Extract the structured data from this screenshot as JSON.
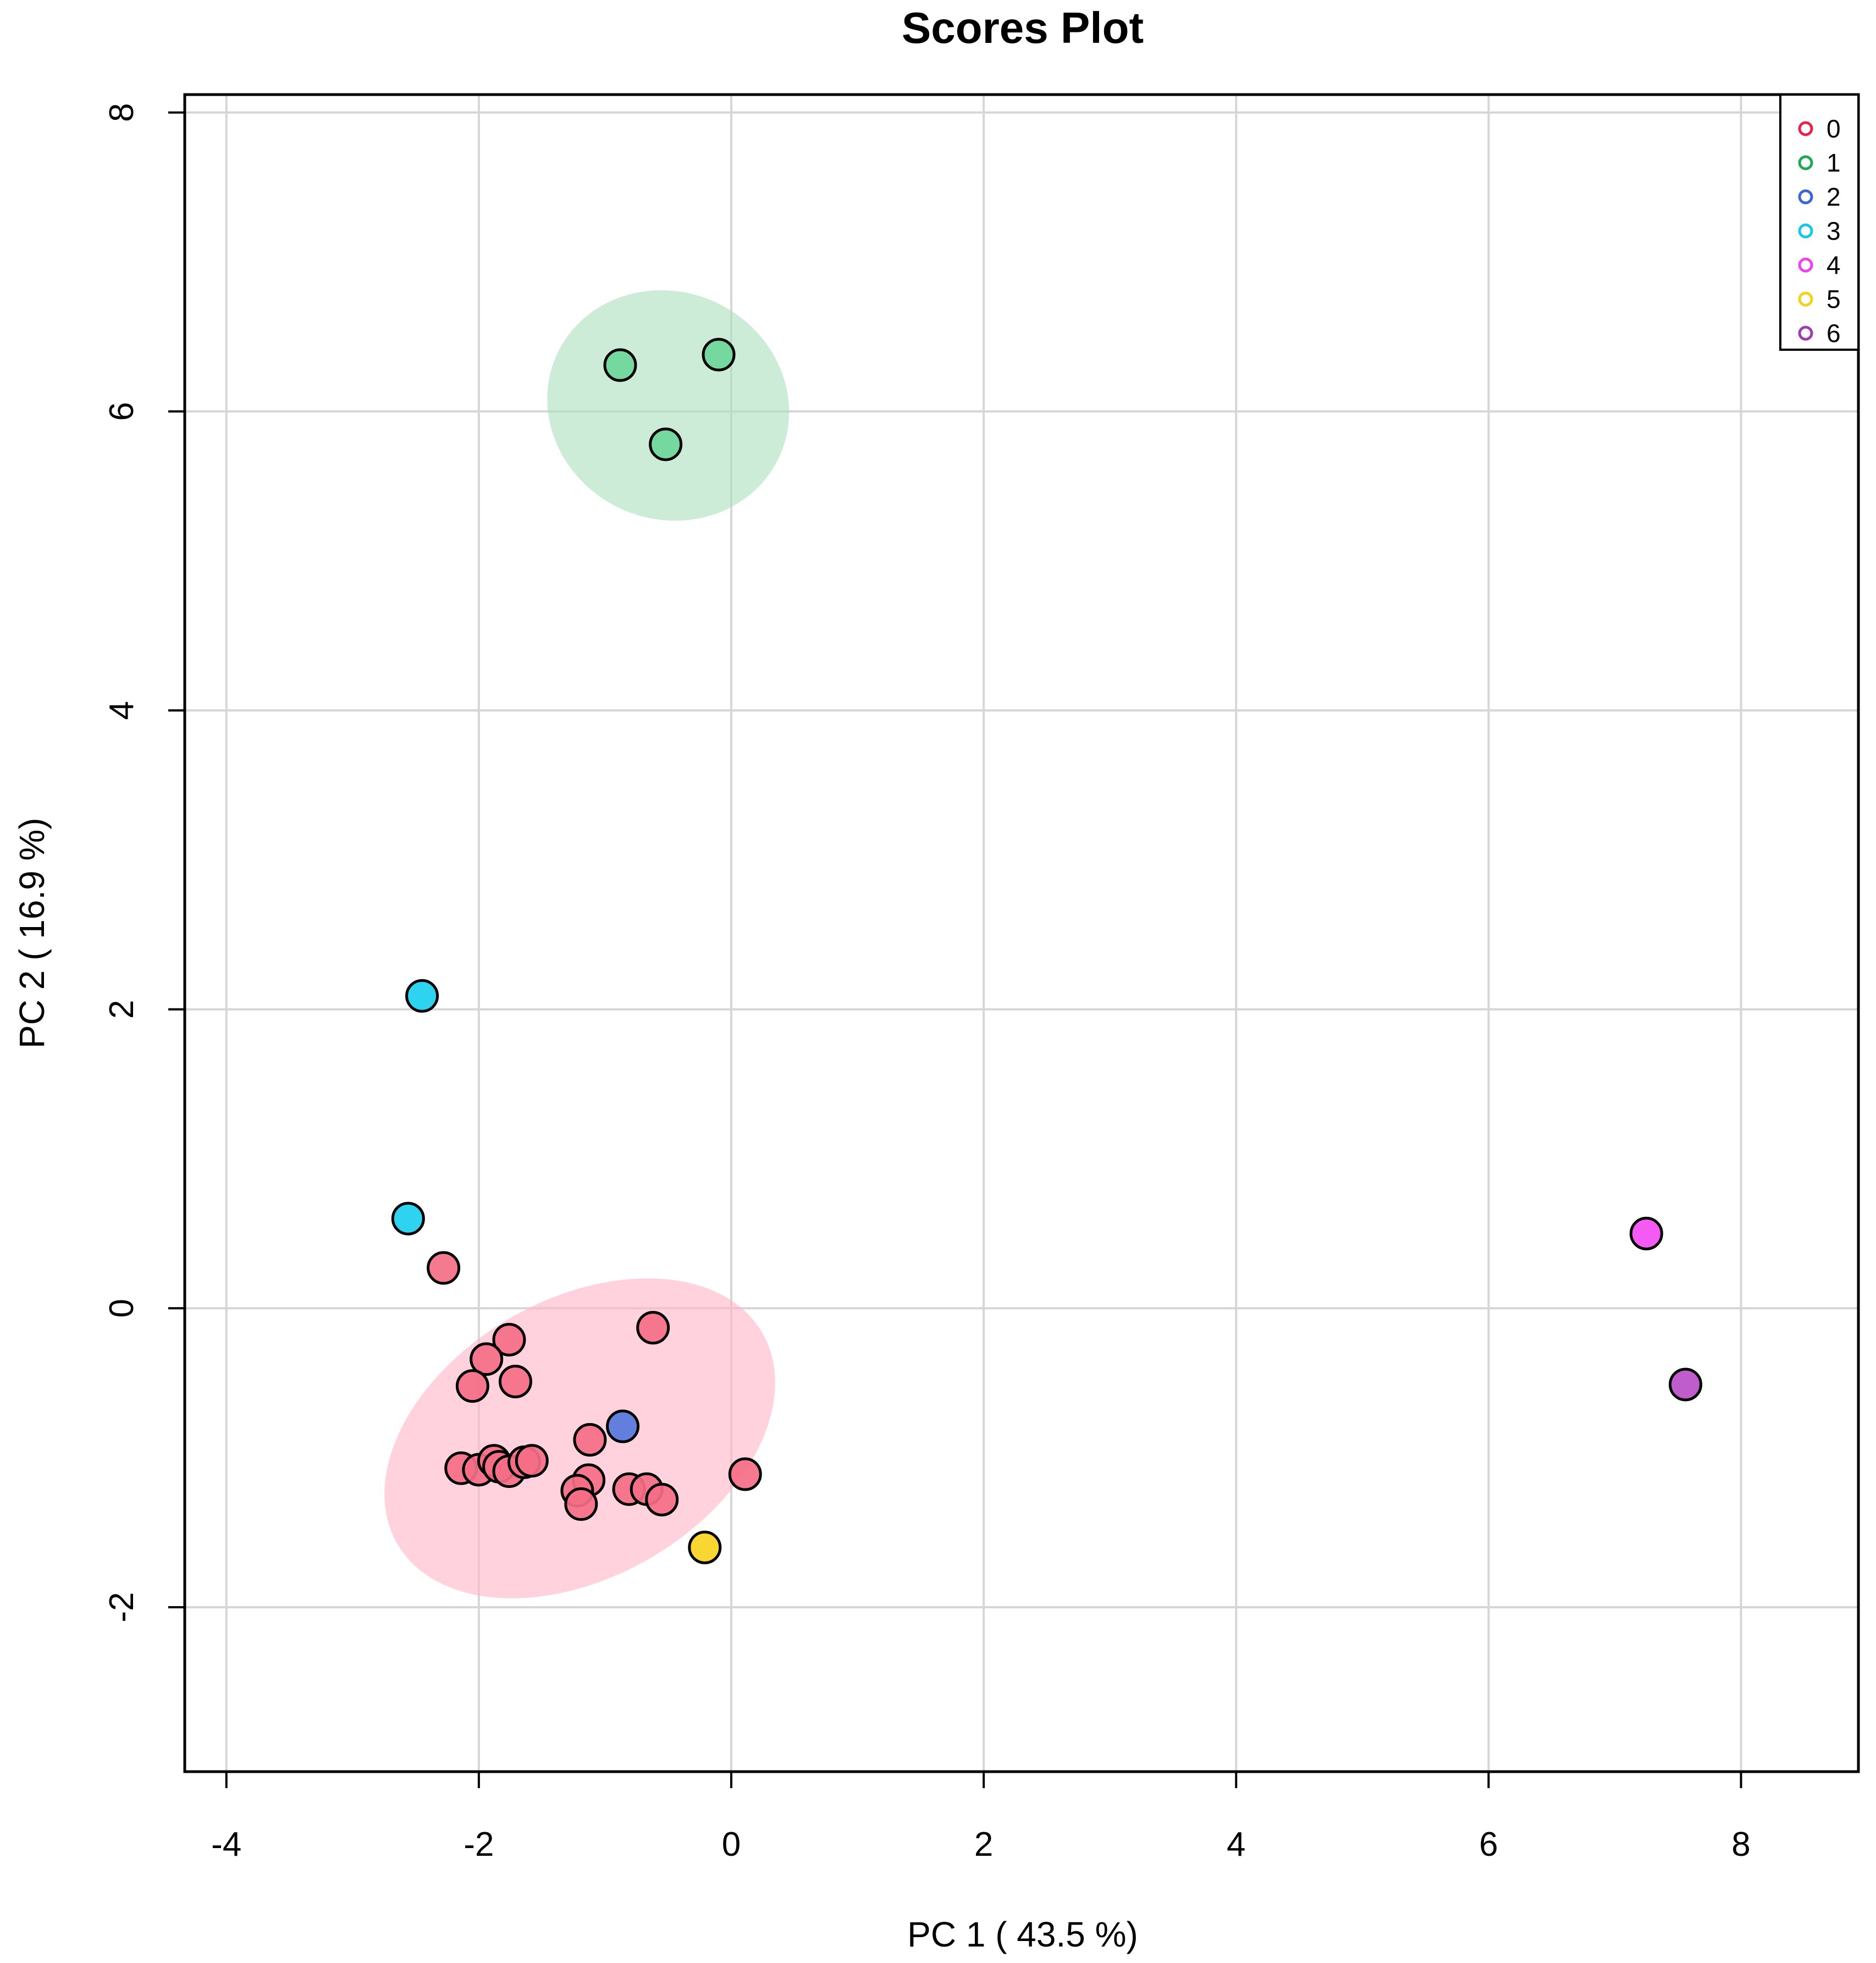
{
  "chart_data": {
    "type": "scatter",
    "title": "Scores Plot",
    "xlabel": "PC 1 ( 43.5 %)",
    "ylabel": "PC 2 ( 16.9 %)",
    "xlim": [
      -4.33,
      8.93
    ],
    "ylim": [
      -3.1,
      8.12
    ],
    "xticks": [
      -4,
      -2,
      0,
      2,
      4,
      6,
      8
    ],
    "yticks": [
      -2,
      0,
      2,
      4,
      6,
      8
    ],
    "xtick_labels": [
      "-4",
      "-2",
      "0",
      "2",
      "4",
      "6",
      "8"
    ],
    "ytick_labels": [
      "-2",
      "0",
      "2",
      "4",
      "6",
      "8"
    ],
    "grid": true,
    "legend_position": "top-right",
    "series": [
      {
        "name": "0",
        "color": "#E8224B",
        "fill": "#F46E86",
        "points": [
          [
            -2.28,
            0.27
          ],
          [
            -1.76,
            -0.21
          ],
          [
            -1.94,
            -0.34
          ],
          [
            -2.05,
            -0.52
          ],
          [
            -1.71,
            -0.49
          ],
          [
            -0.62,
            -0.13
          ],
          [
            -1.12,
            -0.88
          ],
          [
            -2.14,
            -1.07
          ],
          [
            -2.0,
            -1.08
          ],
          [
            -1.88,
            -1.02
          ],
          [
            -1.84,
            -1.06
          ],
          [
            -1.76,
            -1.09
          ],
          [
            -1.64,
            -1.03
          ],
          [
            -1.58,
            -1.02
          ],
          [
            -1.13,
            -1.15
          ],
          [
            -1.22,
            -1.22
          ],
          [
            -1.19,
            -1.31
          ],
          [
            -0.81,
            -1.21
          ],
          [
            -0.67,
            -1.21
          ],
          [
            -0.55,
            -1.28
          ],
          [
            0.11,
            -1.11
          ]
        ]
      },
      {
        "name": "1",
        "color": "#1FA855",
        "fill": "#6ED79A",
        "points": [
          [
            -0.88,
            6.31
          ],
          [
            -0.1,
            6.38
          ],
          [
            -0.52,
            5.78
          ]
        ]
      },
      {
        "name": "2",
        "color": "#3A64D8",
        "fill": "#5577DD",
        "points": [
          [
            -0.86,
            -0.79
          ]
        ]
      },
      {
        "name": "3",
        "color": "#16C8E8",
        "fill": "#1CCFEE",
        "points": [
          [
            -2.45,
            2.09
          ],
          [
            -2.56,
            0.6
          ]
        ]
      },
      {
        "name": "4",
        "color": "#F040F0",
        "fill": "#F44CF4",
        "points": [
          [
            7.25,
            0.5
          ]
        ]
      },
      {
        "name": "5",
        "color": "#F4D11A",
        "fill": "#F8D320",
        "points": [
          [
            -0.21,
            -1.6
          ]
        ]
      },
      {
        "name": "6",
        "color": "#A338B5",
        "fill": "#BA4FC8",
        "points": [
          [
            7.56,
            -0.51
          ]
        ]
      }
    ],
    "ellipses": [
      {
        "group": "0",
        "cx": -1.2,
        "cy": -0.87,
        "rx": 1.67,
        "ry": 0.93,
        "angle_deg": -30,
        "color": "#FFB6C8"
      },
      {
        "group": "1",
        "cx": -0.5,
        "cy": 6.04,
        "rx": 0.97,
        "ry": 0.76,
        "angle_deg": 25,
        "color": "#ACE0C0"
      }
    ]
  }
}
